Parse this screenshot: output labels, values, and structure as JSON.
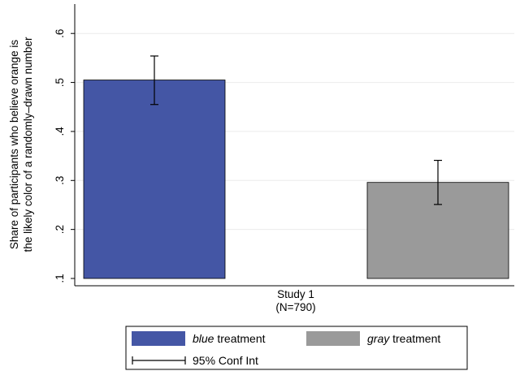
{
  "chart_data": {
    "type": "bar",
    "title": "",
    "ylabel_line1": "Share of participants who believe orange is",
    "ylabel_line2": "the likely color of a randomly–drawn number",
    "xlabel_line1": "Study 1",
    "xlabel_line2": "(N=790)",
    "ylim": [
      0.1,
      0.66
    ],
    "yticks": [
      ".1",
      ".2",
      ".3",
      ".4",
      ".5",
      ".6"
    ],
    "ytick_values": [
      0.1,
      0.2,
      0.3,
      0.4,
      0.5,
      0.6
    ],
    "grid": true,
    "legend_position": "bottom",
    "series": [
      {
        "name_italic": "blue",
        "name_rest": " treatment",
        "value": 0.505,
        "ci_low": 0.455,
        "ci_high": 0.554,
        "color": "#4456A5"
      },
      {
        "name_italic": "gray",
        "name_rest": " treatment",
        "value": 0.296,
        "ci_low": 0.251,
        "ci_high": 0.341,
        "color": "#9A9A9A"
      }
    ],
    "ci_legend_label": "95% Conf Int"
  }
}
